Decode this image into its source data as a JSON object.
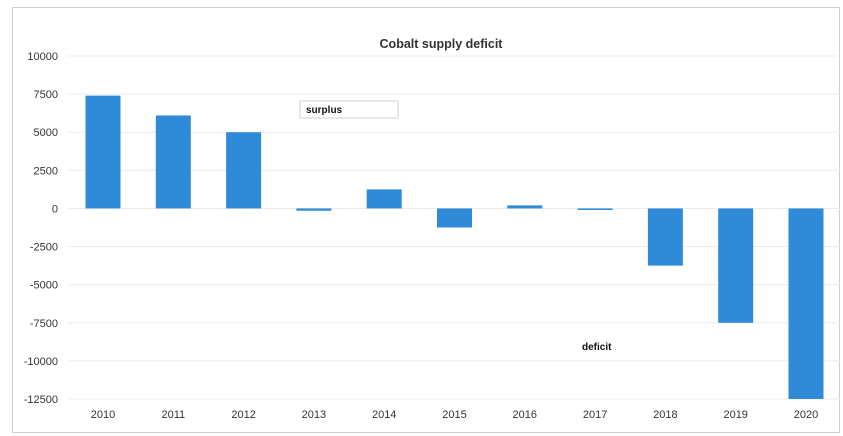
{
  "chart_data": {
    "type": "bar",
    "title": "Cobalt supply deficit",
    "xlabel": "",
    "ylabel": "",
    "categories": [
      "2010",
      "2011",
      "2012",
      "2013",
      "2014",
      "2015",
      "2016",
      "2017",
      "2018",
      "2019",
      "2020"
    ],
    "values": [
      7400,
      6100,
      5000,
      -150,
      1250,
      -1250,
      200,
      -100,
      -3750,
      -7500,
      -12500
    ],
    "ylim": [
      -12500,
      10000
    ],
    "yticks": [
      10000,
      7500,
      5000,
      2500,
      0,
      -2500,
      -5000,
      -7500,
      -10000,
      -12500
    ],
    "ytick_labels": [
      "10000",
      "7500",
      "5000",
      "2500",
      "0",
      "-2500",
      "-5000",
      "-7500",
      "-10000",
      "-12500"
    ],
    "annotations": [
      {
        "text": "surplus",
        "boxed": true
      },
      {
        "text": "deficit",
        "boxed": false
      }
    ],
    "grid": true,
    "legend": "none",
    "colors": {
      "bar": "#2f8ad8",
      "grid": "#ebebeb",
      "text": "#333333"
    }
  }
}
